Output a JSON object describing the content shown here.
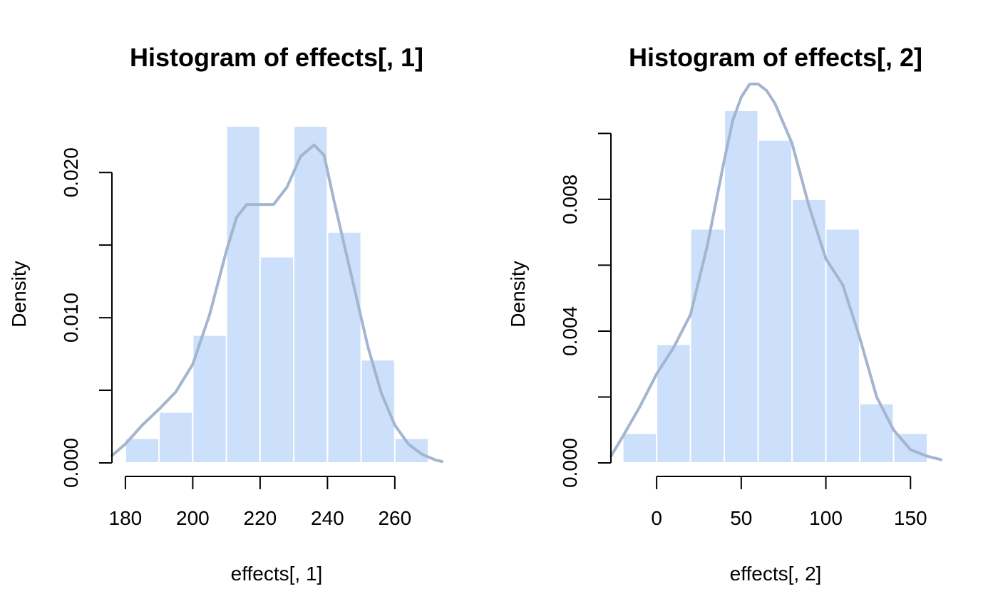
{
  "colors": {
    "bar_fill": "#cce0fc",
    "bar_border": "#ffffff",
    "density_line": "#a3b5cf",
    "axis": "#000000",
    "background": "#ffffff"
  },
  "chart_data": [
    {
      "type": "bar",
      "subtype": "histogram_with_density",
      "title": "Histogram of effects[, 1]",
      "xlabel": "effects[, 1]",
      "ylabel": "Density",
      "xlim": [
        176,
        274
      ],
      "ylim": [
        0,
        0.0232
      ],
      "x_ticks": [
        180,
        200,
        220,
        240,
        260
      ],
      "x_tick_labels": [
        "180",
        "200",
        "220",
        "240",
        "260"
      ],
      "y_ticks": [
        0.0,
        0.005,
        0.01,
        0.015,
        0.02
      ],
      "y_tick_labels": [
        "0.000",
        "",
        "0.010",
        "",
        "0.020"
      ],
      "bins": [
        {
          "start": 180,
          "end": 190,
          "density": 0.0017
        },
        {
          "start": 190,
          "end": 200,
          "density": 0.0035
        },
        {
          "start": 200,
          "end": 210,
          "density": 0.0088
        },
        {
          "start": 210,
          "end": 220,
          "density": 0.0232
        },
        {
          "start": 220,
          "end": 230,
          "density": 0.0142
        },
        {
          "start": 230,
          "end": 240,
          "density": 0.0232
        },
        {
          "start": 240,
          "end": 250,
          "density": 0.0159
        },
        {
          "start": 250,
          "end": 260,
          "density": 0.0071
        },
        {
          "start": 260,
          "end": 270,
          "density": 0.0017
        }
      ],
      "density_curve": {
        "x": [
          176,
          180,
          185,
          190,
          195,
          200,
          205,
          210,
          213,
          216,
          220,
          224,
          228,
          232,
          236,
          239,
          242,
          245,
          248,
          252,
          256,
          260,
          264,
          268,
          272,
          274
        ],
        "y": [
          0.0005,
          0.0013,
          0.0026,
          0.0037,
          0.0049,
          0.0068,
          0.0102,
          0.0146,
          0.0169,
          0.0178,
          0.0178,
          0.0178,
          0.019,
          0.0211,
          0.0219,
          0.0212,
          0.018,
          0.015,
          0.012,
          0.008,
          0.0048,
          0.0026,
          0.0013,
          0.0006,
          0.0002,
          0.0001
        ]
      }
    },
    {
      "type": "bar",
      "subtype": "histogram_with_density",
      "title": "Histogram of effects[, 2]",
      "xlabel": "effects[, 2]",
      "ylabel": "Density",
      "xlim": [
        -27,
        168
      ],
      "ylim": [
        0,
        0.0107
      ],
      "x_ticks": [
        0,
        50,
        100,
        150
      ],
      "x_tick_labels": [
        "0",
        "50",
        "100",
        "150"
      ],
      "y_ticks": [
        0.0,
        0.002,
        0.004,
        0.006,
        0.008,
        0.01
      ],
      "y_tick_labels": [
        "0.000",
        "",
        "0.004",
        "",
        "0.008",
        ""
      ],
      "bins": [
        {
          "start": -20,
          "end": 0,
          "density": 0.0009
        },
        {
          "start": 0,
          "end": 20,
          "density": 0.0036
        },
        {
          "start": 20,
          "end": 40,
          "density": 0.0071
        },
        {
          "start": 40,
          "end": 60,
          "density": 0.0107
        },
        {
          "start": 60,
          "end": 80,
          "density": 0.0098
        },
        {
          "start": 80,
          "end": 100,
          "density": 0.008
        },
        {
          "start": 100,
          "end": 120,
          "density": 0.0071
        },
        {
          "start": 120,
          "end": 140,
          "density": 0.0018
        },
        {
          "start": 140,
          "end": 160,
          "density": 0.0009
        }
      ],
      "density_curve": {
        "x": [
          -27,
          -20,
          -10,
          0,
          10,
          20,
          30,
          40,
          45,
          50,
          55,
          60,
          65,
          70,
          80,
          90,
          100,
          110,
          120,
          130,
          140,
          150,
          160,
          168
        ],
        "y": [
          0.0002,
          0.0008,
          0.0017,
          0.0027,
          0.0035,
          0.0045,
          0.0066,
          0.0092,
          0.0104,
          0.0111,
          0.0115,
          0.0115,
          0.0113,
          0.0109,
          0.0097,
          0.0078,
          0.0062,
          0.0054,
          0.0038,
          0.002,
          0.001,
          0.0004,
          0.0002,
          0.0001
        ]
      }
    }
  ]
}
